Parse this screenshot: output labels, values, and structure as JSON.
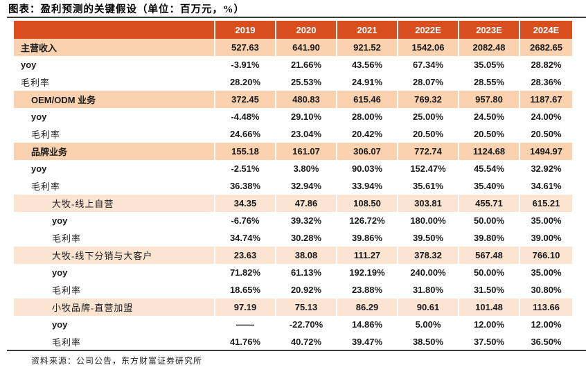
{
  "page": {
    "title": "图表：盈利预测的关键假设（单位：百万元，%）",
    "source_note": "资料来源：公司公告，东方财富证券研究所"
  },
  "colors": {
    "header_bg": "#D94E1F",
    "header_text": "#FFFFFF",
    "section_row_bg": "#FAD2B0",
    "subsection_row_bg": "#FBE5D2",
    "body_text": "#1A1A1A",
    "rule": "#3C3C3C"
  },
  "chart_data": {
    "type": "table",
    "columns": [
      "",
      "2019",
      "2020",
      "2021",
      "2022E",
      "2023E",
      "2024E"
    ],
    "rows": [
      {
        "label": "主营收入",
        "level": 0,
        "row_style": "section",
        "values": [
          "527.63",
          "641.90",
          "921.52",
          "1542.06",
          "2082.48",
          "2682.65"
        ]
      },
      {
        "label": "yoy",
        "level": 0,
        "row_style": "yoy",
        "values": [
          "-3.91%",
          "21.66%",
          "43.56%",
          "67.34%",
          "35.05%",
          "28.82%"
        ]
      },
      {
        "label": "毛利率",
        "level": 0,
        "row_style": "plain",
        "values": [
          "28.20%",
          "25.53%",
          "24.91%",
          "28.07%",
          "28.55%",
          "28.36%"
        ]
      },
      {
        "label": "OEM/ODM 业务",
        "level": 1,
        "row_style": "section",
        "values": [
          "372.45",
          "480.83",
          "615.46",
          "769.32",
          "957.80",
          "1187.67"
        ]
      },
      {
        "label": "yoy",
        "level": 1,
        "row_style": "yoy",
        "values": [
          "-4.48%",
          "29.10%",
          "28.00%",
          "25.00%",
          "24.50%",
          "24.00%"
        ]
      },
      {
        "label": "毛利率",
        "level": 1,
        "row_style": "plain",
        "values": [
          "24.66%",
          "23.04%",
          "20.42%",
          "20.50%",
          "20.50%",
          "20.50%"
        ]
      },
      {
        "label": "品牌业务",
        "level": 1,
        "row_style": "section",
        "values": [
          "155.18",
          "161.07",
          "306.07",
          "772.74",
          "1124.68",
          "1494.97"
        ]
      },
      {
        "label": "yoy",
        "level": 1,
        "row_style": "yoy",
        "values": [
          "-2.51%",
          "3.80%",
          "90.03%",
          "152.47%",
          "45.54%",
          "32.92%"
        ]
      },
      {
        "label": "毛利率",
        "level": 1,
        "row_style": "plain",
        "values": [
          "36.38%",
          "32.94%",
          "33.94%",
          "35.61%",
          "35.40%",
          "34.61%"
        ]
      },
      {
        "label": "大牧-线上自营",
        "level": 2,
        "row_style": "subsection",
        "values": [
          "34.35",
          "47.86",
          "108.50",
          "303.81",
          "455.71",
          "615.21"
        ]
      },
      {
        "label": "yoy",
        "level": 2,
        "row_style": "yoy",
        "values": [
          "-6.76%",
          "39.32%",
          "126.72%",
          "180.00%",
          "50.00%",
          "35.00%"
        ]
      },
      {
        "label": "毛利率",
        "level": 2,
        "row_style": "plain",
        "values": [
          "34.74%",
          "30.28%",
          "39.86%",
          "39.50%",
          "39.80%",
          "39.00%"
        ]
      },
      {
        "label": "大牧-线下分销与大客户",
        "level": 2,
        "row_style": "subsection",
        "values": [
          "23.63",
          "38.08",
          "111.27",
          "378.32",
          "567.48",
          "766.10"
        ]
      },
      {
        "label": "yoy",
        "level": 2,
        "row_style": "yoy",
        "values": [
          "71.82%",
          "61.13%",
          "192.19%",
          "240.00%",
          "50.00%",
          "35.00%"
        ]
      },
      {
        "label": "毛利率",
        "level": 2,
        "row_style": "plain",
        "values": [
          "18.65%",
          "20.92%",
          "23.88%",
          "31.80%",
          "31.50%",
          "30.80%"
        ]
      },
      {
        "label": "小牧品牌-直营加盟",
        "level": 2,
        "row_style": "subsection",
        "values": [
          "97.19",
          "75.13",
          "86.29",
          "90.61",
          "101.48",
          "113.66"
        ]
      },
      {
        "label": "yoy",
        "level": 2,
        "row_style": "yoy",
        "values": [
          "——",
          "-22.70%",
          "14.86%",
          "5.00%",
          "12.00%",
          "12.00%"
        ]
      },
      {
        "label": "毛利率",
        "level": 2,
        "row_style": "plain",
        "values": [
          "41.76%",
          "40.72%",
          "39.47%",
          "38.50%",
          "37.50%",
          "36.50%"
        ]
      }
    ]
  }
}
